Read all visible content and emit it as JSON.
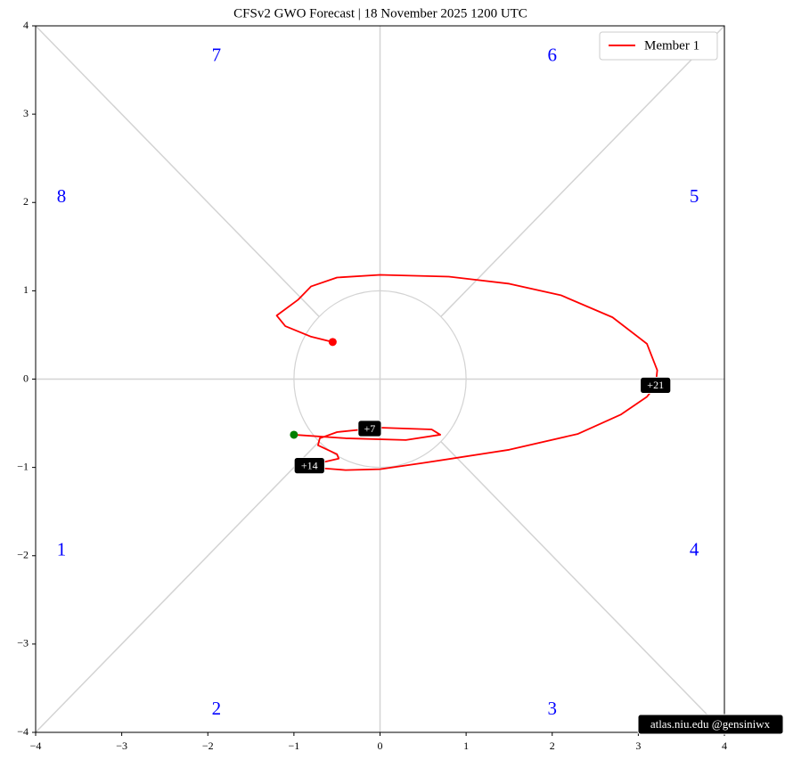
{
  "chart_data": {
    "type": "line",
    "title": "CFSv2 GWO Forecast   |   18  November  2025 1200 UTC",
    "xlim": [
      -4,
      4
    ],
    "ylim": [
      -4,
      4
    ],
    "xticks": [
      {
        "value": -4,
        "label": "−4"
      },
      {
        "value": -3,
        "label": "−3"
      },
      {
        "value": -2,
        "label": "−2"
      },
      {
        "value": -1,
        "label": "−1"
      },
      0,
      1,
      2,
      3,
      4
    ],
    "yticks": [
      {
        "value": -4,
        "label": "−4"
      },
      {
        "value": -3,
        "label": "−3"
      },
      {
        "value": -2,
        "label": "−2"
      },
      {
        "value": -1,
        "label": "−1"
      },
      0,
      1,
      2,
      3,
      4
    ],
    "series": [
      {
        "name": "Member 1",
        "color": "#ff0000",
        "x": [
          -1.0,
          -0.4,
          0.3,
          0.7,
          0.6,
          0.0,
          -0.5,
          -0.7,
          -0.72,
          -0.5,
          -0.48,
          -0.7,
          -0.8,
          -0.4,
          0.0,
          0.5,
          1.5,
          2.3,
          2.8,
          3.1,
          3.2,
          3.22,
          3.1,
          2.7,
          2.1,
          1.5,
          0.8,
          0.0,
          -0.5,
          -0.8,
          -0.95,
          -1.2,
          -1.1,
          -0.8,
          -0.55
        ],
        "values": [
          -0.63,
          -0.67,
          -0.69,
          -0.63,
          -0.57,
          -0.55,
          -0.6,
          -0.67,
          -0.75,
          -0.85,
          -0.9,
          -0.95,
          -1.0,
          -1.03,
          -1.02,
          -0.95,
          -0.8,
          -0.62,
          -0.4,
          -0.2,
          -0.08,
          0.1,
          0.4,
          0.7,
          0.95,
          1.08,
          1.16,
          1.18,
          1.15,
          1.05,
          0.9,
          0.72,
          0.6,
          0.48,
          0.42
        ]
      }
    ],
    "start_color": "#008000",
    "end_color": "#ff0000",
    "annotations": [
      {
        "text": "+7",
        "x": -0.12,
        "y": -0.56
      },
      {
        "text": "+14",
        "x": -0.82,
        "y": -0.98
      },
      {
        "text": "+21",
        "x": 3.2,
        "y": -0.07
      }
    ],
    "phases": [
      "1",
      "2",
      "3",
      "4",
      "5",
      "6",
      "7",
      "8"
    ],
    "phase_color": "#0000ff",
    "legend": "upper right",
    "credit": "atlas.niu.edu  @gensiniwx"
  }
}
